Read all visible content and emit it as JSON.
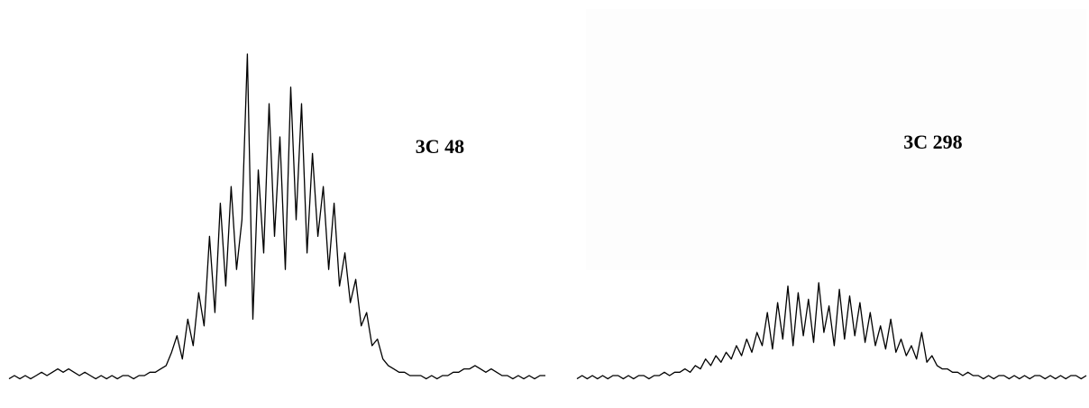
{
  "chart_data": [
    {
      "type": "line",
      "title": "3C 48",
      "color": "#000000",
      "ylim": [
        0,
        100
      ],
      "values": [
        2,
        3,
        2,
        3,
        2,
        3,
        4,
        3,
        4,
        5,
        4,
        5,
        4,
        3,
        4,
        3,
        2,
        3,
        2,
        3,
        2,
        3,
        3,
        2,
        3,
        3,
        4,
        4,
        5,
        6,
        10,
        15,
        8,
        20,
        12,
        28,
        18,
        45,
        22,
        55,
        30,
        60,
        35,
        50,
        100,
        20,
        65,
        40,
        85,
        45,
        75,
        35,
        90,
        50,
        85,
        40,
        70,
        45,
        60,
        35,
        55,
        30,
        40,
        25,
        32,
        18,
        22,
        12,
        14,
        8,
        6,
        5,
        4,
        4,
        3,
        3,
        3,
        2,
        3,
        2,
        3,
        3,
        4,
        4,
        5,
        5,
        6,
        5,
        4,
        5,
        4,
        3,
        3,
        2,
        3,
        2,
        3,
        2,
        3,
        3
      ]
    },
    {
      "type": "line",
      "title": "3C 298",
      "color": "#000000",
      "ylim": [
        0,
        100
      ],
      "values": [
        2,
        3,
        2,
        3,
        2,
        3,
        2,
        3,
        3,
        2,
        3,
        2,
        3,
        3,
        2,
        3,
        3,
        4,
        3,
        4,
        4,
        5,
        4,
        6,
        5,
        8,
        6,
        9,
        7,
        10,
        8,
        12,
        9,
        14,
        10,
        16,
        12,
        22,
        11,
        25,
        14,
        30,
        12,
        28,
        15,
        26,
        13,
        31,
        16,
        24,
        12,
        29,
        14,
        27,
        15,
        25,
        13,
        22,
        12,
        18,
        11,
        20,
        10,
        14,
        9,
        12,
        8,
        16,
        7,
        9,
        6,
        5,
        5,
        4,
        4,
        3,
        4,
        3,
        3,
        2,
        3,
        2,
        3,
        3,
        2,
        3,
        2,
        3,
        2,
        3,
        3,
        2,
        3,
        2,
        3,
        2,
        3,
        3,
        2,
        3
      ]
    }
  ]
}
